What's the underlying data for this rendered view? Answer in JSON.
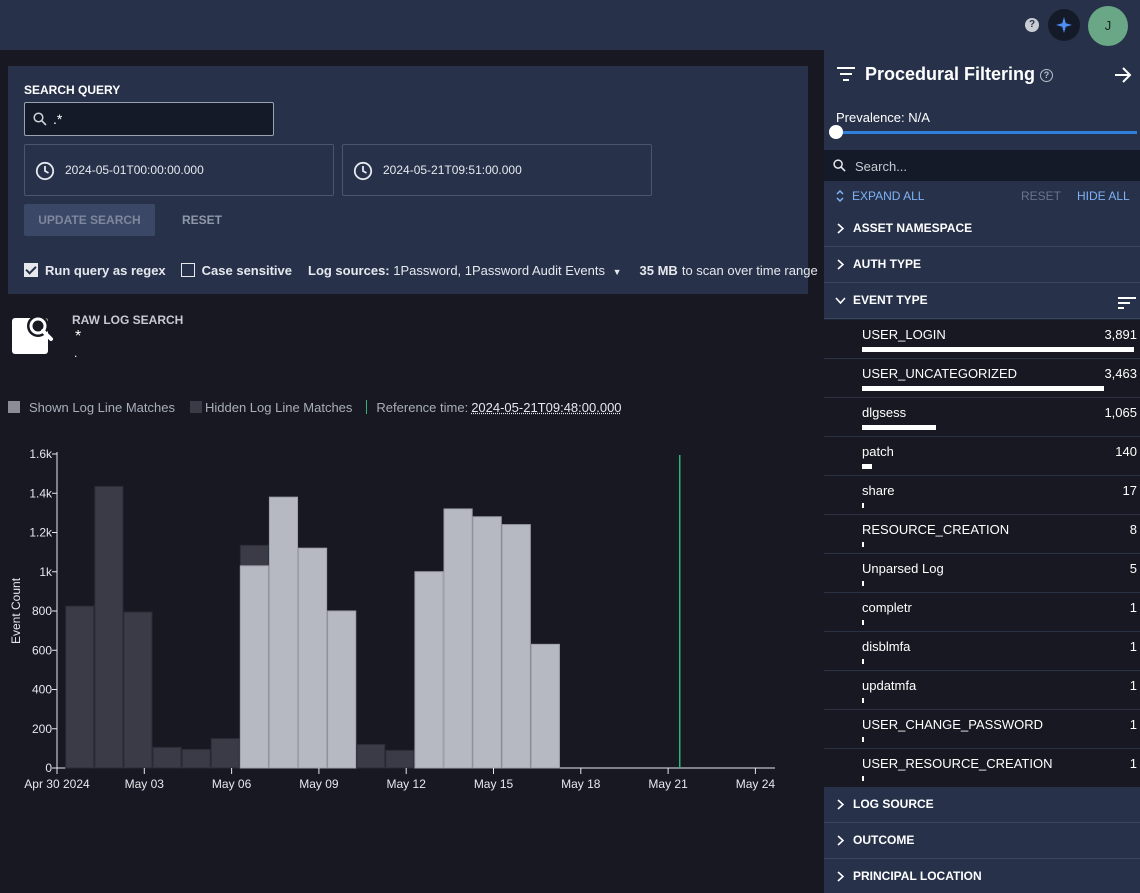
{
  "topbar": {
    "help": "?",
    "avatar_initial": "J"
  },
  "search": {
    "label": "SEARCH QUERY",
    "query": ".*",
    "start_time": "2024-05-01T00:00:00.000",
    "end_time": "2024-05-21T09:51:00.000",
    "update_label": "UPDATE SEARCH",
    "reset_label": "RESET",
    "regex_label": "Run query as regex",
    "regex_checked": true,
    "case_label": "Case sensitive",
    "case_checked": false,
    "log_sources_label": "Log sources:",
    "log_sources_value": "1Password, 1Password Audit Events",
    "scan_size": "35 MB",
    "scan_suffix": "to scan over time range"
  },
  "raw_log": {
    "title": "RAW LOG SEARCH",
    "query": "*",
    "sub": "."
  },
  "legend": {
    "shown": "Shown Log Line Matches",
    "hidden": "Hidden Log Line Matches",
    "reference_label": "Reference time:",
    "reference_value": "2024-05-21T09:48:00.000",
    "colors": {
      "shown": "#b7b9c2",
      "hidden": "#3a3b47",
      "reference": "#2fb37a"
    }
  },
  "chart_data": {
    "type": "bar",
    "ylabel": "Event Count",
    "ylim": [
      0,
      1600
    ],
    "yticks": [
      "0",
      "200",
      "400",
      "600",
      "800",
      "1k",
      "1.2k",
      "1.4k",
      "1.6k"
    ],
    "x_ticks": [
      "Apr 30 2024",
      "May 03",
      "May 06",
      "May 09",
      "May 12",
      "May 15",
      "May 18",
      "May 21",
      "May 24"
    ],
    "x_tick_days": [
      0,
      3,
      6,
      9,
      12,
      15,
      18,
      21,
      24
    ],
    "bin_start_days": [
      0.3,
      1.3,
      2.3,
      3.3,
      4.3,
      5.3,
      6.3,
      7.3,
      8.3,
      9.3,
      10.3,
      11.3,
      12.3,
      13.3,
      14.3,
      15.3,
      16.3
    ],
    "shown": [
      0,
      0,
      0,
      0,
      0,
      0,
      1030,
      1380,
      1120,
      800,
      0,
      0,
      1000,
      1320,
      1280,
      1240,
      630
    ],
    "hidden": [
      825,
      1435,
      795,
      105,
      95,
      150,
      1135,
      1380,
      1120,
      800,
      120,
      90,
      1000,
      1320,
      1280,
      1240,
      630
    ],
    "reference_day": 21.4
  },
  "sidebar": {
    "title": "Procedural Filtering",
    "prevalence": "Prevalence: N/A",
    "search_placeholder": "Search...",
    "expand_all": "EXPAND ALL",
    "reset": "RESET",
    "hide_all": "HIDE ALL",
    "sections_top": [
      "ASSET NAMESPACE",
      "AUTH TYPE",
      "EVENT TYPE"
    ],
    "event_types": [
      {
        "name": "USER_LOGIN",
        "count": "3,891",
        "value": 3891
      },
      {
        "name": "USER_UNCATEGORIZED",
        "count": "3,463",
        "value": 3463
      },
      {
        "name": "dlgsess",
        "count": "1,065",
        "value": 1065
      },
      {
        "name": "patch",
        "count": "140",
        "value": 140
      },
      {
        "name": "share",
        "count": "17",
        "value": 17
      },
      {
        "name": "RESOURCE_CREATION",
        "count": "8",
        "value": 8
      },
      {
        "name": "Unparsed Log",
        "count": "5",
        "value": 5
      },
      {
        "name": "completr",
        "count": "1",
        "value": 1
      },
      {
        "name": "disblmfa",
        "count": "1",
        "value": 1
      },
      {
        "name": "updatmfa",
        "count": "1",
        "value": 1
      },
      {
        "name": "USER_CHANGE_PASSWORD",
        "count": "1",
        "value": 1
      },
      {
        "name": "USER_RESOURCE_CREATION",
        "count": "1",
        "value": 1
      }
    ],
    "sections_bottom": [
      "LOG SOURCE",
      "OUTCOME",
      "PRINCIPAL LOCATION"
    ]
  }
}
